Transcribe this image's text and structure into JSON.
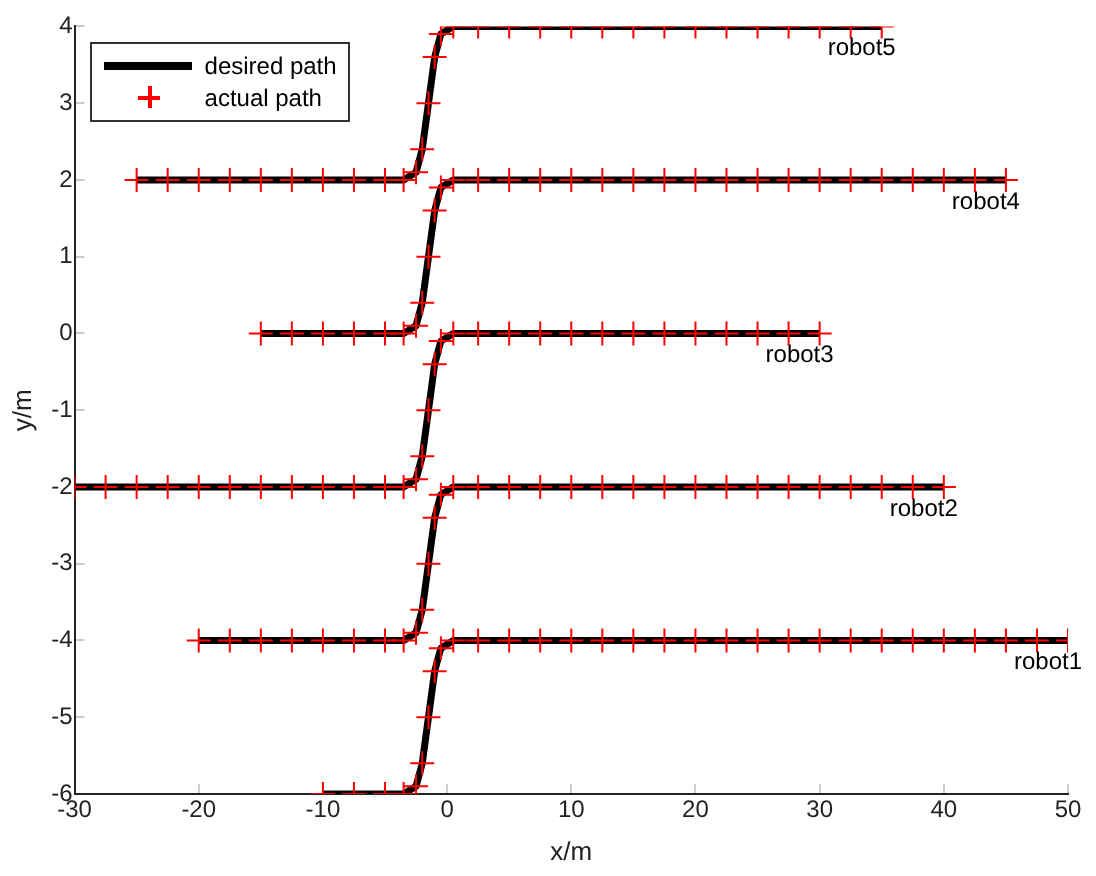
{
  "chart_data": {
    "type": "line",
    "xlabel": "x/m",
    "ylabel": "y/m",
    "xlim": [
      -30,
      50
    ],
    "ylim": [
      -6,
      4
    ],
    "xticks": [
      -30,
      -20,
      -10,
      0,
      10,
      20,
      30,
      40,
      50
    ],
    "yticks": [
      -6,
      -5,
      -4,
      -3,
      -2,
      -1,
      0,
      1,
      2,
      3,
      4
    ],
    "grid": false,
    "legend": "top left",
    "series": [
      {
        "name": "desired path",
        "color": "#000000",
        "marker": "none",
        "x": [
          -10,
          -3.5,
          -2.5,
          -2,
          -1.5,
          -1,
          -0.5,
          0.5,
          50
        ],
        "values": [
          -6,
          -6,
          -5.9,
          -5.6,
          -5,
          -4.4,
          -4.1,
          -4,
          -4
        ]
      },
      {
        "color": "#000000",
        "marker": "none",
        "x": [
          -20,
          -3.5,
          -2.5,
          -2,
          -1.5,
          -1,
          -0.5,
          0.5,
          40
        ],
        "values": [
          -4,
          -4,
          -3.9,
          -3.6,
          -3,
          -2.4,
          -2.1,
          -2,
          -2
        ]
      },
      {
        "color": "#000000",
        "marker": "none",
        "x": [
          -30,
          -3.5,
          -2.5,
          -2,
          -1.5,
          -1,
          -0.5,
          0.5,
          30
        ],
        "values": [
          -2,
          -2,
          -1.9,
          -1.6,
          -1,
          -0.4,
          -0.1,
          0,
          0
        ]
      },
      {
        "color": "#000000",
        "marker": "none",
        "x": [
          -15,
          -3.5,
          -2.5,
          -2,
          -1.5,
          -1,
          -0.5,
          0.5,
          45
        ],
        "values": [
          0,
          0,
          0.1,
          0.4,
          1,
          1.6,
          1.9,
          2,
          2
        ]
      },
      {
        "color": "#000000",
        "marker": "none",
        "x": [
          -25,
          -3.5,
          -2.5,
          -2,
          -1.5,
          -1,
          -0.5,
          0.5,
          35
        ],
        "values": [
          2,
          2,
          2.1,
          2.4,
          3,
          3.6,
          3.9,
          4,
          4
        ]
      },
      {
        "name": "actual path",
        "type": "scatter",
        "color": "#ff0000",
        "marker": "cross",
        "x": [
          -10,
          -7.5,
          -5,
          -3.5,
          -2.5,
          -2,
          -1.5,
          -1,
          -0.5,
          0.5,
          2.5,
          5,
          7.5,
          10,
          12.5,
          15,
          17.5,
          20,
          22.5,
          25,
          27.5,
          30,
          32.5,
          35,
          37.5,
          40,
          42.5,
          45,
          47.5,
          50,
          -20,
          -17.5,
          -15,
          -12.5,
          -10,
          -7.5,
          -5,
          -3.5,
          -2.5,
          -2,
          -1.5,
          -1,
          -0.5,
          0.5,
          2.5,
          5,
          7.5,
          10,
          12.5,
          15,
          17.5,
          20,
          22.5,
          25,
          27.5,
          30,
          32.5,
          35,
          37.5,
          40,
          -30,
          -27.5,
          -25,
          -22.5,
          -20,
          -17.5,
          -15,
          -12.5,
          -10,
          -7.5,
          -5,
          -3.5,
          -2.5,
          -2,
          -1.5,
          -1,
          -0.5,
          0.5,
          2.5,
          5,
          7.5,
          10,
          12.5,
          15,
          17.5,
          20,
          22.5,
          25,
          27.5,
          30,
          -15,
          -12.5,
          -10,
          -7.5,
          -5,
          -3.5,
          -2.5,
          -2,
          -1.5,
          -1,
          -0.5,
          0.5,
          2.5,
          5,
          7.5,
          10,
          12.5,
          15,
          17.5,
          20,
          22.5,
          25,
          27.5,
          30,
          32.5,
          35,
          37.5,
          40,
          42.5,
          45,
          -25,
          -22.5,
          -20,
          -17.5,
          -15,
          -12.5,
          -10,
          -7.5,
          -5,
          -3.5,
          -2.5,
          -2,
          -1.5,
          -1,
          -0.5,
          0.5,
          2.5,
          5,
          7.5,
          10,
          12.5,
          15,
          17.5,
          20,
          22.5,
          25,
          27.5,
          30,
          32.5,
          35
        ],
        "values": [
          -6,
          -6,
          -6,
          -6,
          -5.9,
          -5.6,
          -5,
          -4.4,
          -4.1,
          -4,
          -4,
          -4,
          -4,
          -4,
          -4,
          -4,
          -4,
          -4,
          -4,
          -4,
          -4,
          -4,
          -4,
          -4,
          -4,
          -4,
          -4,
          -4,
          -4,
          -4,
          -4,
          -4,
          -4,
          -4,
          -4,
          -4,
          -4,
          -4,
          -3.9,
          -3.6,
          -3,
          -2.4,
          -2.1,
          -2,
          -2,
          -2,
          -2,
          -2,
          -2,
          -2,
          -2,
          -2,
          -2,
          -2,
          -2,
          -2,
          -2,
          -2,
          -2,
          -2,
          -2,
          -2,
          -2,
          -2,
          -2,
          -2,
          -2,
          -2,
          -2,
          -2,
          -2,
          -2,
          -1.9,
          -1.6,
          -1,
          -0.4,
          -0.1,
          0,
          0,
          0,
          0,
          0,
          0,
          0,
          0,
          0,
          0,
          0,
          0,
          0,
          0,
          0,
          0,
          0,
          0,
          0,
          0.1,
          0.4,
          1,
          1.6,
          1.9,
          2,
          2,
          2,
          2,
          2,
          2,
          2,
          2,
          2,
          2,
          2,
          2,
          2,
          2,
          2,
          2,
          2,
          2,
          2,
          2,
          2,
          2,
          2,
          2,
          2,
          2,
          2,
          2,
          2,
          2.1,
          2.4,
          3,
          3.6,
          3.9,
          4,
          4,
          4,
          4,
          4,
          4,
          4,
          4,
          4,
          4,
          4,
          4,
          4,
          4,
          4
        ]
      }
    ],
    "annotations": [
      {
        "text": "robot1",
        "x": 50,
        "y": -4
      },
      {
        "text": "robot2",
        "x": 40,
        "y": -2
      },
      {
        "text": "robot3",
        "x": 30,
        "y": 0
      },
      {
        "text": "robot4",
        "x": 45,
        "y": 2
      },
      {
        "text": "robot5",
        "x": 35,
        "y": 4
      }
    ]
  }
}
